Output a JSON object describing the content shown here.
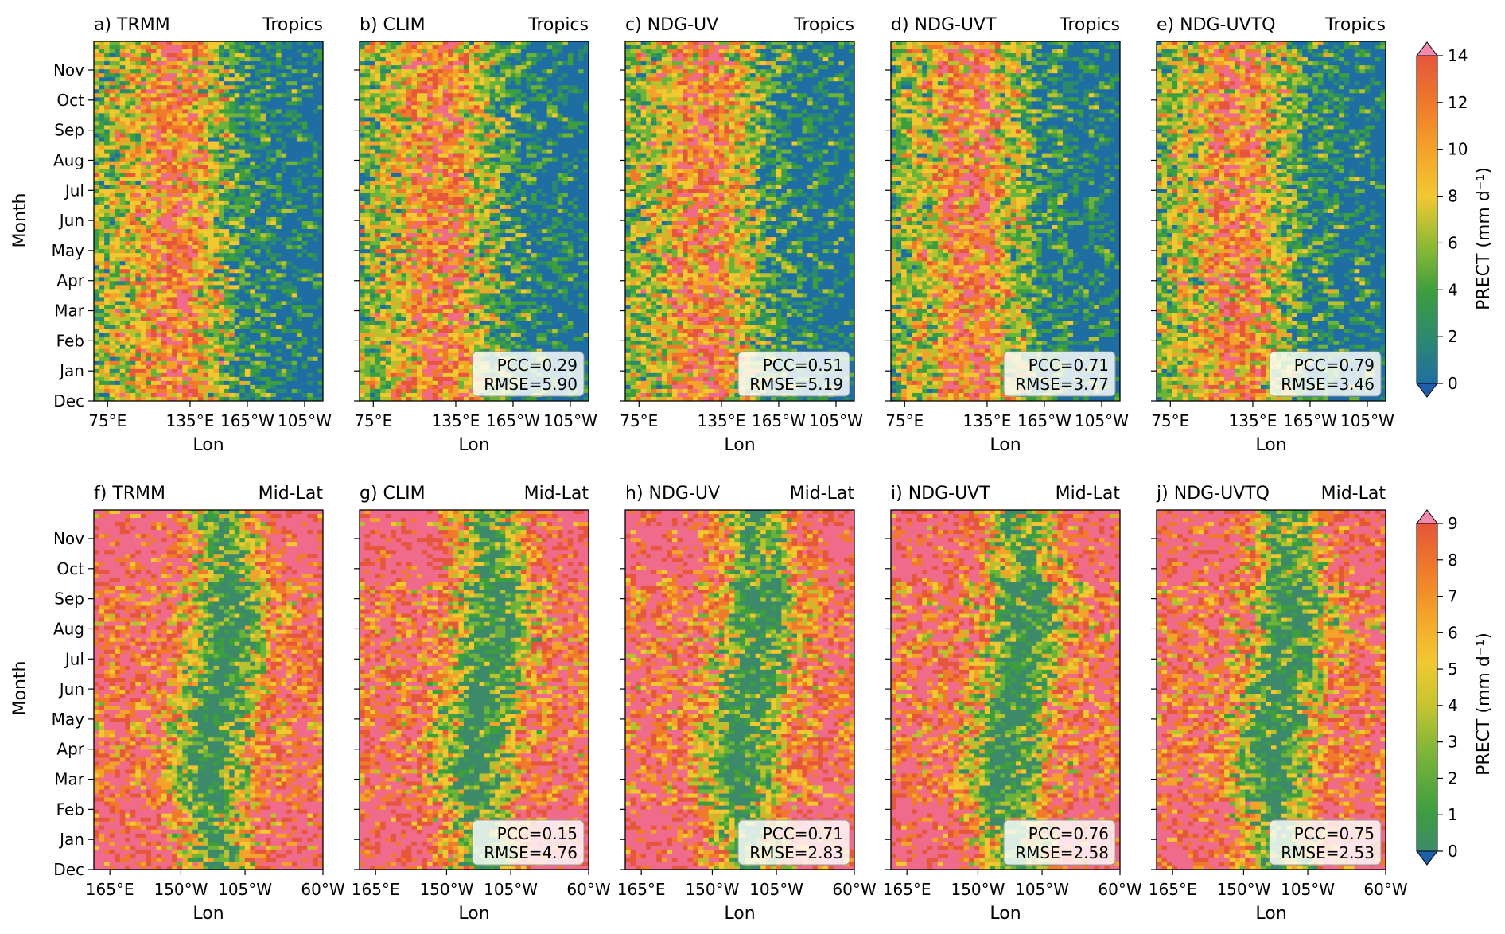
{
  "figure": {
    "row_labels": [
      "Tropics",
      "Mid-Lat"
    ],
    "ylabel": "Month",
    "xlabel": "Lon",
    "colorbar_label": "PRECT (mm d⁻¹)"
  },
  "chart_data": [
    {
      "type": "heatmap",
      "title": "a) TRMM",
      "region": "Tropics",
      "xlabel": "Lon",
      "ylabel": "Month",
      "xticks": [
        "75°E",
        "135°E",
        "165°W",
        "105°W"
      ],
      "yticks": [
        "Dec",
        "Jan",
        "Feb",
        "Mar",
        "Apr",
        "May",
        "Jun",
        "Jul",
        "Aug",
        "Sep",
        "Oct",
        "Nov"
      ],
      "stats": null,
      "colorbar": {
        "label": "PRECT (mm d⁻¹)",
        "min": 0,
        "max": 14,
        "ticks": [
          0,
          2,
          4,
          6,
          8,
          10,
          12,
          14
        ]
      }
    },
    {
      "type": "heatmap",
      "title": "b) CLIM",
      "region": "Tropics",
      "xlabel": "Lon",
      "xticks": [
        "75°E",
        "135°E",
        "165°W",
        "105°W"
      ],
      "stats": {
        "pcc": "PCC=0.29",
        "rmse": "RMSE=5.90"
      }
    },
    {
      "type": "heatmap",
      "title": "c) NDG-UV",
      "region": "Tropics",
      "xlabel": "Lon",
      "xticks": [
        "75°E",
        "135°E",
        "165°W",
        "105°W"
      ],
      "stats": {
        "pcc": "PCC=0.51",
        "rmse": "RMSE=5.19"
      }
    },
    {
      "type": "heatmap",
      "title": "d) NDG-UVT",
      "region": "Tropics",
      "xlabel": "Lon",
      "xticks": [
        "75°E",
        "135°E",
        "165°W",
        "105°W"
      ],
      "stats": {
        "pcc": "PCC=0.71",
        "rmse": "RMSE=3.77"
      }
    },
    {
      "type": "heatmap",
      "title": "e) NDG-UVTQ",
      "region": "Tropics",
      "xlabel": "Lon",
      "xticks": [
        "75°E",
        "135°E",
        "165°W",
        "105°W"
      ],
      "stats": {
        "pcc": "PCC=0.79",
        "rmse": "RMSE=3.46"
      }
    },
    {
      "type": "heatmap",
      "title": "f) TRMM",
      "region": "Mid-Lat",
      "xlabel": "Lon",
      "ylabel": "Month",
      "xticks": [
        "165°E",
        "150°W",
        "105°W",
        "60°W"
      ],
      "yticks": [
        "Dec",
        "Jan",
        "Feb",
        "Mar",
        "Apr",
        "May",
        "Jun",
        "Jul",
        "Aug",
        "Sep",
        "Oct",
        "Nov"
      ],
      "stats": null,
      "colorbar": {
        "label": "PRECT (mm d⁻¹)",
        "min": 0,
        "max": 9,
        "ticks": [
          0,
          1,
          2,
          3,
          4,
          5,
          6,
          7,
          8,
          9
        ]
      }
    },
    {
      "type": "heatmap",
      "title": "g) CLIM",
      "region": "Mid-Lat",
      "xlabel": "Lon",
      "xticks": [
        "165°E",
        "150°W",
        "105°W",
        "60°W"
      ],
      "stats": {
        "pcc": "PCC=0.15",
        "rmse": "RMSE=4.76"
      }
    },
    {
      "type": "heatmap",
      "title": "h) NDG-UV",
      "region": "Mid-Lat",
      "xlabel": "Lon",
      "xticks": [
        "165°E",
        "150°W",
        "105°W",
        "60°W"
      ],
      "stats": {
        "pcc": "PCC=0.71",
        "rmse": "RMSE=2.83"
      }
    },
    {
      "type": "heatmap",
      "title": "i) NDG-UVT",
      "region": "Mid-Lat",
      "xlabel": "Lon",
      "xticks": [
        "165°E",
        "150°W",
        "105°W",
        "60°W"
      ],
      "stats": {
        "pcc": "PCC=0.76",
        "rmse": "RMSE=2.58"
      }
    },
    {
      "type": "heatmap",
      "title": "j) NDG-UVTQ",
      "region": "Mid-Lat",
      "xlabel": "Lon",
      "xticks": [
        "165°E",
        "150°W",
        "105°W",
        "60°W"
      ],
      "stats": {
        "pcc": "PCC=0.75",
        "rmse": "RMSE=2.53"
      }
    }
  ],
  "colors": {
    "scale": [
      "#1f6ea3",
      "#2b8a6e",
      "#3d9e3e",
      "#6cb33a",
      "#b8c22e",
      "#f2c830",
      "#f4a32a",
      "#f07a2a",
      "#e5563a",
      "#f06a8c"
    ],
    "under": "#1f5ea8",
    "over": "#f28ab0",
    "midlat_low": "#3d8a6a"
  }
}
